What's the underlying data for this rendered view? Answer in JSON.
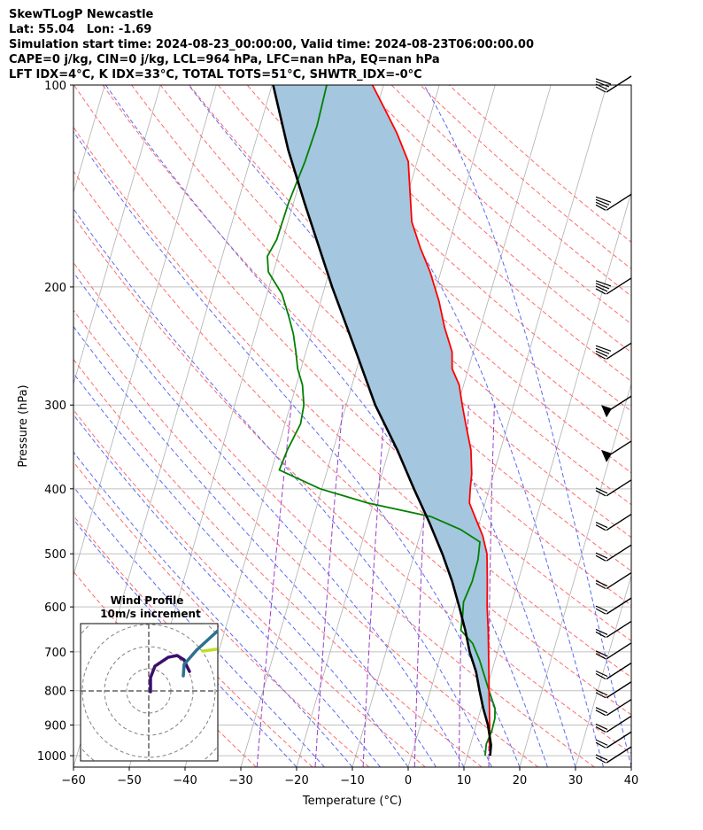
{
  "header": {
    "line1": "SkewTLogP Newcastle",
    "line2": "Lat: 55.04   Lon: -1.69",
    "line3": "Simulation start time: 2024-08-23_00:00:00, Valid time: 2024-08-23T06:00:00.00",
    "line4": "CAPE=0 j/kg, CIN=0 j/kg, LCL=964 hPa, LFC=nan hPa, EQ=nan hPa",
    "line5": "LFT IDX=4°C, K IDX=33°C, TOTAL TOTS=51°C, SHWTR_IDX=-0°C"
  },
  "colors": {
    "temperature": "#ff0000",
    "dewpoint": "#008000",
    "parcel": "#000000",
    "cape_fill": "#a4c6de",
    "dry_adiabat": "#ff6b6b",
    "moist_adiabat": "#5b6cf0",
    "mixing_ratio": "#9b3fc7",
    "isotherm": "#b0b0b0",
    "grid": "#c0c0c0"
  },
  "chart_data": {
    "type": "line",
    "title": "",
    "xlabel": "Temperature (°C)",
    "ylabel": "Pressure (hPa)",
    "xlim": [
      -60,
      40
    ],
    "ylim": [
      1040,
      100
    ],
    "yscale": "log",
    "skew_per_decade_degC": 35,
    "x_ticks": [
      "−60",
      "−50",
      "−40",
      "−30",
      "−20",
      "−10",
      "0",
      "10",
      "20",
      "30",
      "40"
    ],
    "x_tick_values": [
      -60,
      -50,
      -40,
      -30,
      -20,
      -10,
      0,
      10,
      20,
      30,
      40
    ],
    "y_ticks": [
      "100",
      "200",
      "300",
      "400",
      "500",
      "600",
      "700",
      "800",
      "900",
      "1000"
    ],
    "y_tick_values": [
      100,
      200,
      300,
      400,
      500,
      600,
      700,
      800,
      900,
      1000
    ],
    "series": [
      {
        "key": "temperature",
        "points": [
          [
            1000,
            14.1
          ],
          [
            950,
            13.2
          ],
          [
            900,
            12.4
          ],
          [
            850,
            11.5
          ],
          [
            800,
            10.5
          ],
          [
            750,
            9.5
          ],
          [
            700,
            8.4
          ],
          [
            650,
            7.2
          ],
          [
            600,
            5.8
          ],
          [
            550,
            4.5
          ],
          [
            500,
            3.0
          ],
          [
            470,
            1.3
          ],
          [
            450,
            -0.3
          ],
          [
            420,
            -2.8
          ],
          [
            400,
            -3.4
          ],
          [
            380,
            -3.9
          ],
          [
            350,
            -5.3
          ],
          [
            320,
            -7.6
          ],
          [
            300,
            -9.2
          ],
          [
            280,
            -10.8
          ],
          [
            265,
            -12.9
          ],
          [
            250,
            -13.8
          ],
          [
            230,
            -16.4
          ],
          [
            210,
            -18.8
          ],
          [
            190,
            -21.9
          ],
          [
            175,
            -24.9
          ],
          [
            160,
            -27.8
          ],
          [
            145,
            -29.6
          ],
          [
            130,
            -31.6
          ],
          [
            118,
            -35.1
          ],
          [
            110,
            -38.0
          ],
          [
            100,
            -42.0
          ]
        ]
      },
      {
        "key": "dewpoint",
        "points": [
          [
            1000,
            13.2
          ],
          [
            960,
            12.8
          ],
          [
            920,
            13.1
          ],
          [
            880,
            13.0
          ],
          [
            850,
            12.5
          ],
          [
            800,
            10.5
          ],
          [
            760,
            8.9
          ],
          [
            720,
            7.2
          ],
          [
            680,
            5.1
          ],
          [
            650,
            2.3
          ],
          [
            620,
            1.9
          ],
          [
            590,
            1.3
          ],
          [
            550,
            1.8
          ],
          [
            510,
            1.7
          ],
          [
            480,
            1.1
          ],
          [
            460,
            -3.0
          ],
          [
            440,
            -9.0
          ],
          [
            420,
            -21.0
          ],
          [
            400,
            -30.3
          ],
          [
            375,
            -38.6
          ],
          [
            350,
            -38.2
          ],
          [
            320,
            -37.2
          ],
          [
            300,
            -37.6
          ],
          [
            280,
            -38.9
          ],
          [
            265,
            -40.6
          ],
          [
            250,
            -41.8
          ],
          [
            235,
            -43.2
          ],
          [
            220,
            -45.1
          ],
          [
            205,
            -47.3
          ],
          [
            190,
            -50.9
          ],
          [
            180,
            -51.9
          ],
          [
            170,
            -51.1
          ],
          [
            150,
            -50.9
          ],
          [
            130,
            -50.1
          ],
          [
            115,
            -49.8
          ],
          [
            100,
            -50.2
          ]
        ]
      },
      {
        "key": "parcel",
        "points": [
          [
            1000,
            14.1
          ],
          [
            964,
            13.7
          ],
          [
            900,
            12.1
          ],
          [
            850,
            10.4
          ],
          [
            800,
            8.8
          ],
          [
            750,
            7.2
          ],
          [
            700,
            5.0
          ],
          [
            650,
            3.1
          ],
          [
            600,
            0.8
          ],
          [
            550,
            -1.8
          ],
          [
            500,
            -5.0
          ],
          [
            450,
            -8.9
          ],
          [
            400,
            -13.5
          ],
          [
            350,
            -18.5
          ],
          [
            300,
            -24.8
          ],
          [
            250,
            -31.0
          ],
          [
            200,
            -38.7
          ],
          [
            150,
            -48.0
          ],
          [
            125,
            -53.7
          ],
          [
            100,
            -59.8
          ]
        ]
      }
    ],
    "cape_cin_shading": "region between temperature and parcel, 1000-100 hPa",
    "winds_barbs_present": true,
    "wind_barb_pressures": [
      100,
      150,
      200,
      250,
      300,
      350,
      400,
      450,
      500,
      550,
      600,
      650,
      700,
      750,
      800,
      850,
      900,
      950,
      1000
    ],
    "inset": {
      "title_line1": "Wind Profile",
      "title_line2": "10m/s increment",
      "hodograph_colormap": "viridis"
    }
  }
}
